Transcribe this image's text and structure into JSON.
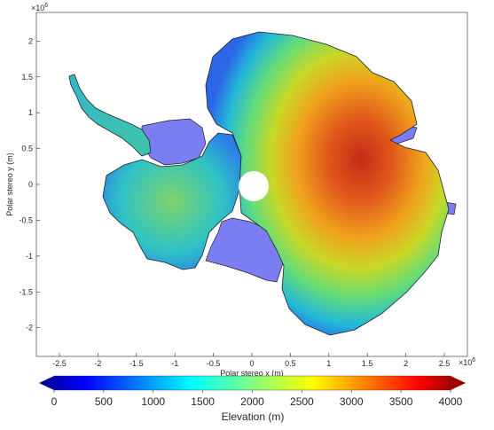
{
  "map": {
    "xlabel": "Polar stereo x (m)",
    "ylabel": "Polar stereo y (m)",
    "x_multiplier": "×10",
    "x_exponent": "6",
    "y_multiplier": "×10",
    "y_exponent": "6",
    "xticks": [
      -2.5,
      -2,
      -1.5,
      -1,
      -0.5,
      0,
      0.5,
      1,
      1.5,
      2,
      2.5
    ],
    "yticks": [
      2,
      1.5,
      1,
      0.5,
      0,
      -0.5,
      -1,
      -1.5,
      -2
    ],
    "xlim": [
      -2.8,
      2.8
    ],
    "ylim": [
      -2.4,
      2.4
    ],
    "colormap": "jet",
    "ice_shelf_color": "#7a7cf0",
    "pole_hole_color": "#ffffff"
  },
  "colorbar": {
    "label": "Elevation (m)",
    "ticks": [
      "0",
      "500",
      "1000",
      "1500",
      "2000",
      "2500",
      "3000",
      "3500",
      "4000"
    ],
    "range": [
      0,
      4000
    ]
  }
}
